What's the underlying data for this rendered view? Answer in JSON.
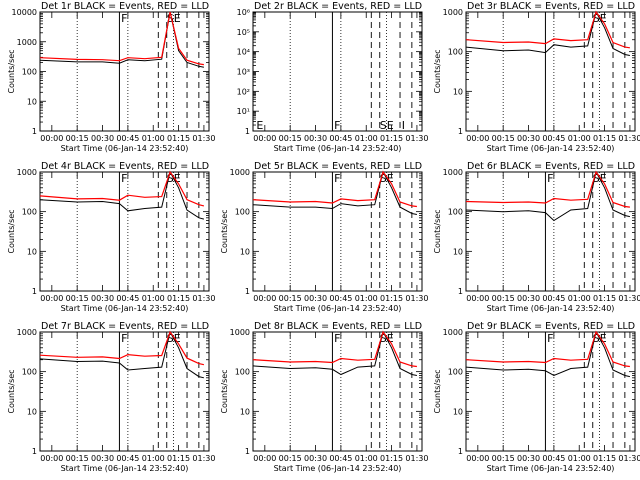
{
  "chart_data": [
    {
      "type": "line",
      "title": "Det 1r BLACK = Events, RED = LLD",
      "xlabel": "Start Time (06-Jan-14 23:52:40)",
      "ylabel": "Counts/sec",
      "y_scale": "log",
      "ylim": [
        1,
        10000
      ],
      "y_ticks": [
        "1",
        "10",
        "100",
        "1000",
        "10000"
      ],
      "x_ticks": [
        "00:00",
        "00:15",
        "00:30",
        "00:45",
        "01:00",
        "01:15",
        "01:30"
      ],
      "flags": [
        "F",
        "SE"
      ],
      "series": [
        {
          "x": [
            "23:53",
            "00:15",
            "00:30",
            "00:40",
            "00:45",
            "00:55",
            "01:05",
            "01:10",
            "01:15",
            "01:20",
            "01:27",
            "01:30"
          ],
          "values": [
            240,
            210,
            210,
            190,
            250,
            230,
            260,
            10000,
            500,
            200,
            150,
            140
          ]
        },
        {
          "x": [
            "23:53",
            "00:15",
            "00:30",
            "00:40",
            "00:45",
            "00:55",
            "01:05",
            "01:10",
            "01:15",
            "01:20",
            "01:27",
            "01:30"
          ],
          "values": [
            290,
            255,
            250,
            230,
            290,
            270,
            300,
            10000,
            600,
            240,
            180,
            170
          ]
        }
      ]
    },
    {
      "type": "line",
      "title": "Det 2r BLACK = Events, RED = LLD",
      "xlabel": "Start Time (06-Jan-14 23:52:40)",
      "ylabel": "",
      "y_scale": "log",
      "ylim": [
        1,
        1000000
      ],
      "y_ticks": [
        "1",
        "10¹",
        "10²",
        "10³",
        "10⁴",
        "10⁵",
        "10⁶"
      ],
      "x_ticks": [
        "00:00",
        "00:15",
        "00:30",
        "00:45",
        "01:00",
        "01:15",
        "01:30"
      ],
      "flags": [
        "E",
        "F",
        "SE",
        "I"
      ],
      "series": []
    },
    {
      "type": "line",
      "title": "Det 3r BLACK = Events, RED = LLD",
      "xlabel": "Start Time (06-Jan-14 23:52:40)",
      "ylabel": "Counts/sec",
      "y_scale": "log",
      "ylim": [
        1,
        1000
      ],
      "y_ticks": [
        "1",
        "10",
        "100",
        "1000"
      ],
      "x_ticks": [
        "00:00",
        "00:15",
        "00:30",
        "00:45",
        "01:00",
        "01:15",
        "01:30"
      ],
      "flags": [
        "SE"
      ],
      "series": [
        {
          "x": [
            "23:53",
            "00:15",
            "00:30",
            "00:40",
            "00:45",
            "00:55",
            "01:05",
            "01:10",
            "01:15",
            "01:20",
            "01:27",
            "01:30"
          ],
          "values": [
            130,
            105,
            110,
            95,
            150,
            130,
            140,
            1000,
            400,
            120,
            85,
            80
          ]
        },
        {
          "x": [
            "23:53",
            "00:15",
            "00:30",
            "00:40",
            "00:45",
            "00:55",
            "01:05",
            "01:10",
            "01:15",
            "01:20",
            "01:27",
            "01:30"
          ],
          "values": [
            200,
            170,
            175,
            160,
            210,
            190,
            200,
            1000,
            500,
            170,
            130,
            125
          ]
        }
      ]
    },
    {
      "type": "line",
      "title": "Det 4r BLACK = Events, RED = LLD",
      "xlabel": "Start Time (06-Jan-14 23:52:40)",
      "ylabel": "Counts/sec",
      "y_scale": "log",
      "ylim": [
        1,
        1000
      ],
      "y_ticks": [
        "1",
        "10",
        "100",
        "1000"
      ],
      "x_ticks": [
        "00:00",
        "00:15",
        "00:30",
        "00:45",
        "01:00",
        "01:15",
        "01:30"
      ],
      "flags": [
        "F",
        "SE"
      ],
      "series": [
        {
          "x": [
            "23:53",
            "00:15",
            "00:30",
            "00:40",
            "00:45",
            "00:55",
            "01:05",
            "01:10",
            "01:15",
            "01:20",
            "01:27",
            "01:30"
          ],
          "values": [
            200,
            175,
            180,
            160,
            105,
            120,
            130,
            1000,
            400,
            110,
            70,
            65
          ]
        },
        {
          "x": [
            "23:53",
            "00:15",
            "00:30",
            "00:40",
            "00:45",
            "00:55",
            "01:05",
            "01:10",
            "01:15",
            "01:20",
            "01:27",
            "01:30"
          ],
          "values": [
            250,
            210,
            215,
            195,
            260,
            230,
            240,
            1000,
            500,
            200,
            150,
            140
          ]
        }
      ]
    },
    {
      "type": "line",
      "title": "Det 5r BLACK = Events, RED = LLD",
      "xlabel": "Start Time (06-Jan-14 23:52:40)",
      "ylabel": "Counts/sec",
      "y_scale": "log",
      "ylim": [
        1,
        1000
      ],
      "y_ticks": [
        "1",
        "10",
        "100",
        "1000"
      ],
      "x_ticks": [
        "00:00",
        "00:15",
        "00:30",
        "00:45",
        "01:00",
        "01:15",
        "01:30"
      ],
      "flags": [
        "F",
        "SE"
      ],
      "series": [
        {
          "x": [
            "23:53",
            "00:15",
            "00:30",
            "00:40",
            "00:45",
            "00:55",
            "01:05",
            "01:10",
            "01:15",
            "01:20",
            "01:27",
            "01:30"
          ],
          "values": [
            150,
            130,
            130,
            120,
            160,
            140,
            150,
            1000,
            400,
            130,
            90,
            85
          ]
        },
        {
          "x": [
            "23:53",
            "00:15",
            "00:30",
            "00:40",
            "00:45",
            "00:55",
            "01:05",
            "01:10",
            "01:15",
            "01:20",
            "01:27",
            "01:30"
          ],
          "values": [
            200,
            175,
            180,
            165,
            210,
            190,
            200,
            1000,
            500,
            175,
            140,
            135
          ]
        }
      ]
    },
    {
      "type": "line",
      "title": "Det 6r BLACK = Events, RED = LLD",
      "xlabel": "Start Time (06-Jan-14 23:52:40)",
      "ylabel": "Counts/sec",
      "y_scale": "log",
      "ylim": [
        1,
        1000
      ],
      "y_ticks": [
        "1",
        "10",
        "100",
        "1000"
      ],
      "x_ticks": [
        "00:00",
        "00:15",
        "00:30",
        "00:45",
        "01:00",
        "01:15",
        "01:30"
      ],
      "flags": [
        "F",
        "SE"
      ],
      "series": [
        {
          "x": [
            "23:53",
            "00:15",
            "00:30",
            "00:40",
            "00:45",
            "00:55",
            "01:05",
            "01:10",
            "01:15",
            "01:20",
            "01:27",
            "01:30"
          ],
          "values": [
            110,
            100,
            105,
            95,
            60,
            110,
            120,
            1000,
            400,
            110,
            80,
            75
          ]
        },
        {
          "x": [
            "23:53",
            "00:15",
            "00:30",
            "00:40",
            "00:45",
            "00:55",
            "01:05",
            "01:10",
            "01:15",
            "01:20",
            "01:27",
            "01:30"
          ],
          "values": [
            180,
            170,
            175,
            165,
            215,
            195,
            205,
            1000,
            500,
            170,
            135,
            130
          ]
        }
      ]
    },
    {
      "type": "line",
      "title": "Det 7r BLACK = Events, RED = LLD",
      "xlabel": "Start Time (06-Jan-14 23:52:40)",
      "ylabel": "Counts/sec",
      "y_scale": "log",
      "ylim": [
        1,
        1000
      ],
      "y_ticks": [
        "1",
        "10",
        "100",
        "1000"
      ],
      "x_ticks": [
        "00:00",
        "00:15",
        "00:30",
        "00:45",
        "01:00",
        "01:15",
        "01:30"
      ],
      "flags": [
        "F",
        "SE"
      ],
      "series": [
        {
          "x": [
            "23:53",
            "00:15",
            "00:30",
            "00:40",
            "00:45",
            "00:55",
            "01:05",
            "01:10",
            "01:15",
            "01:20",
            "01:27",
            "01:30"
          ],
          "values": [
            210,
            180,
            185,
            165,
            110,
            120,
            130,
            1000,
            400,
            120,
            75,
            70
          ]
        },
        {
          "x": [
            "23:53",
            "00:15",
            "00:30",
            "00:40",
            "00:45",
            "00:55",
            "01:05",
            "01:10",
            "01:15",
            "01:20",
            "01:27",
            "01:30"
          ],
          "values": [
            260,
            230,
            235,
            215,
            270,
            245,
            255,
            1000,
            500,
            220,
            160,
            150
          ]
        }
      ]
    },
    {
      "type": "line",
      "title": "Det 8r BLACK = Events, RED = LLD",
      "xlabel": "Start Time (06-Jan-14 23:52:40)",
      "ylabel": "Counts/sec",
      "y_scale": "log",
      "ylim": [
        1,
        1000
      ],
      "y_ticks": [
        "1",
        "10",
        "100",
        "1000"
      ],
      "x_ticks": [
        "00:00",
        "00:15",
        "00:30",
        "00:45",
        "01:00",
        "01:15",
        "01:30"
      ],
      "flags": [
        "F",
        "SE"
      ],
      "series": [
        {
          "x": [
            "23:53",
            "00:15",
            "00:30",
            "00:40",
            "00:45",
            "00:55",
            "01:05",
            "01:10",
            "01:15",
            "01:20",
            "01:27",
            "01:30"
          ],
          "values": [
            140,
            120,
            125,
            115,
            85,
            130,
            140,
            1000,
            400,
            120,
            85,
            80
          ]
        },
        {
          "x": [
            "23:53",
            "00:15",
            "00:30",
            "00:40",
            "00:45",
            "00:55",
            "01:05",
            "01:10",
            "01:15",
            "01:20",
            "01:27",
            "01:30"
          ],
          "values": [
            200,
            175,
            180,
            170,
            215,
            195,
            205,
            1000,
            500,
            175,
            140,
            135
          ]
        }
      ]
    },
    {
      "type": "line",
      "title": "Det 9r BLACK = Events, RED = LLD",
      "xlabel": "Start Time (06-Jan-14 23:52:40)",
      "ylabel": "Counts/sec",
      "y_scale": "log",
      "ylim": [
        1,
        1000
      ],
      "y_ticks": [
        "1",
        "10",
        "100",
        "1000"
      ],
      "x_ticks": [
        "00:00",
        "00:15",
        "00:30",
        "00:45",
        "01:00",
        "01:15",
        "01:30"
      ],
      "flags": [
        "F",
        "SE"
      ],
      "series": [
        {
          "x": [
            "23:53",
            "00:15",
            "00:30",
            "00:40",
            "00:45",
            "00:55",
            "01:05",
            "01:10",
            "01:15",
            "01:20",
            "01:27",
            "01:30"
          ],
          "values": [
            130,
            110,
            115,
            105,
            80,
            120,
            130,
            1000,
            400,
            110,
            80,
            75
          ]
        },
        {
          "x": [
            "23:53",
            "00:15",
            "00:30",
            "00:40",
            "00:45",
            "00:55",
            "01:05",
            "01:10",
            "01:15",
            "01:20",
            "01:27",
            "01:30"
          ],
          "values": [
            200,
            175,
            180,
            170,
            215,
            195,
            205,
            1000,
            500,
            175,
            140,
            135
          ]
        }
      ]
    }
  ],
  "colors": {
    "background": "#ffffff",
    "events": "#000000",
    "lld": "#ff0000"
  }
}
